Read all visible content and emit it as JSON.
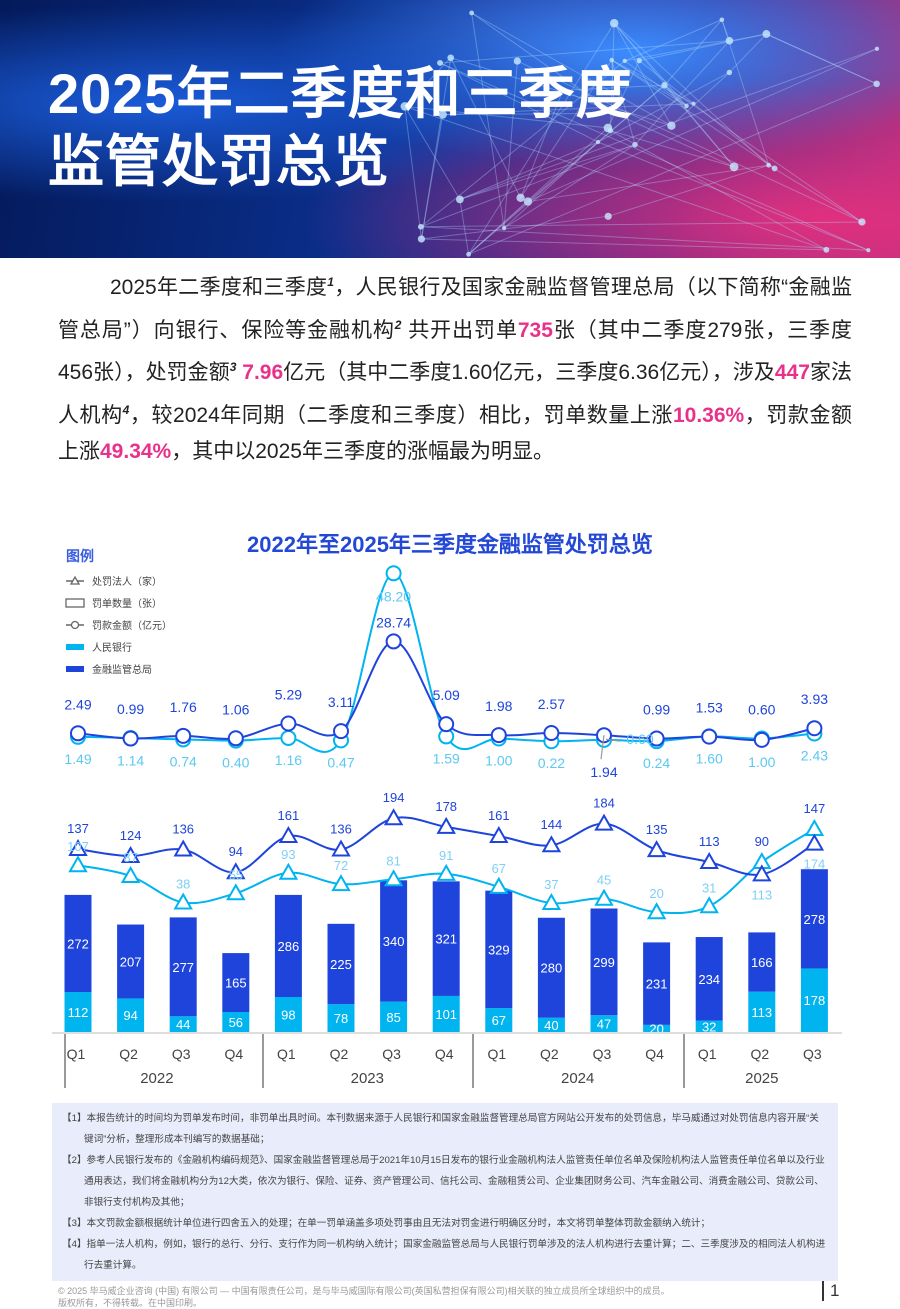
{
  "header": {
    "title_line1": "2025年二季度和三季度",
    "title_line2": "监管处罚总览"
  },
  "paragraph": [
    {
      "t": "2025年二季度和三季度"
    },
    {
      "sup": "1"
    },
    {
      "t": "，人民银行及国家金融监督管理总局（以下简称“金融监管总局”）向银行、保险等金融机构"
    },
    {
      "sup": "2"
    },
    {
      "t": " 共开出罚单"
    },
    {
      "hl": "735"
    },
    {
      "t": "张（其中二季度279张，三季度456张），处罚金额"
    },
    {
      "sup": "3"
    },
    {
      "t": " "
    },
    {
      "hl": "7.96"
    },
    {
      "t": "亿元（其中二季度1.60亿元，三季度6.36亿元），涉及"
    },
    {
      "hl": "447"
    },
    {
      "t": "家法人机构"
    },
    {
      "sup": "4"
    },
    {
      "t": "，较2024年同期（二季度和三季度）相比，罚单数量上涨"
    },
    {
      "hl": "10.36%"
    },
    {
      "t": "，罚款金额上涨"
    },
    {
      "hl": "49.34%"
    },
    {
      "t": "，其中以2025年三季度的涨幅最为明显。"
    }
  ],
  "colors": {
    "pboc": "#00b4f0",
    "nfra": "#1e44dc",
    "highlight": "#e8318a",
    "title": "#2348d6"
  },
  "chart_data": {
    "type": "bar+line",
    "title": "2022年至2025年三季度金融监管处罚总览",
    "legend_title": "图例",
    "legend": [
      {
        "label": "处罚法人（家）",
        "marker": "triangle-line"
      },
      {
        "label": "罚单数量（张）",
        "marker": "bar-outline"
      },
      {
        "label": "罚款金额（亿元）",
        "marker": "circle-line"
      },
      {
        "label": "人民银行",
        "marker": "pboc-swatch"
      },
      {
        "label": "金融监管总局",
        "marker": "nfra-swatch"
      }
    ],
    "quarters": [
      "Q1",
      "Q2",
      "Q3",
      "Q4",
      "Q1",
      "Q2",
      "Q3",
      "Q4",
      "Q1",
      "Q2",
      "Q3",
      "Q4",
      "Q1",
      "Q2",
      "Q3"
    ],
    "years": [
      {
        "label": "2022",
        "span": 4
      },
      {
        "label": "2023",
        "span": 4
      },
      {
        "label": "2024",
        "span": 4
      },
      {
        "label": "2025",
        "span": 3
      }
    ],
    "penalty_count": {
      "pboc": [
        112,
        94,
        44,
        56,
        98,
        78,
        85,
        101,
        67,
        40,
        47,
        20,
        32,
        113,
        178
      ],
      "nfra": [
        272,
        207,
        277,
        165,
        286,
        225,
        340,
        321,
        329,
        280,
        299,
        231,
        234,
        166,
        278
      ]
    },
    "penalized_entities": {
      "pboc": [
        107,
        87,
        38,
        55,
        93,
        72,
        81,
        91,
        67,
        37,
        45,
        20,
        31,
        113,
        174
      ],
      "nfra": [
        137,
        124,
        136,
        94,
        161,
        136,
        194,
        178,
        161,
        144,
        184,
        135,
        113,
        90,
        147
      ]
    },
    "fine_amount": {
      "pboc": [
        "1.49",
        "1.14",
        "0.74",
        "0.40",
        "1.16",
        "0.47",
        "48.20",
        "1.59",
        "1.00",
        "0.22",
        "0.60",
        "0.24",
        "1.60",
        "1.00",
        "2.43"
      ],
      "nfra": [
        "2.49",
        "0.99",
        "1.76",
        "1.06",
        "5.29",
        "3.11",
        "28.74",
        "5.09",
        "1.98",
        "2.57",
        "1.94",
        "0.99",
        "1.53",
        "0.60",
        "3.93"
      ]
    }
  },
  "notes": [
    "【1】本报告统计的时间均为罚单发布时间，非罚单出具时间。本刊数据来源于人民银行和国家金融监督管理总局官方网站公开发布的处罚信息，毕马威通过对处罚信息内容开展“关键词”分析，整理形成本刊编写的数据基础；",
    "【2】参考人民银行发布的《金融机构编码规范》、国家金融监督管理总局于2021年10月15日发布的银行业金融机构法人监管责任单位名单及保险机构法人监管责任单位名单以及行业通用表达，我们将金融机构分为12大类，依次为银行、保险、证券、资产管理公司、信托公司、金融租赁公司、企业集团财务公司、汽车金融公司、消费金融公司、贷款公司、非银行支付机构及其他；",
    "【3】本文罚款金额根据统计单位进行四舍五入的处理；在单一罚单涵盖多项处罚事由且无法对罚金进行明确区分时，本文将罚单整体罚款金额纳入统计；",
    "【4】指单一法人机构，例如，银行的总行、分行、支行作为同一机构纳入统计；国家金融监管总局与人民银行罚单涉及的法人机构进行去重计算；二、三季度涉及的相同法人机构进行去重计算。"
  ],
  "footer": {
    "line1": "© 2025 毕马威企业咨询 (中国) 有限公司 — 中国有限责任公司，是与毕马威国际有限公司(英国私营担保有限公司)相关联的独立成员所全球组织中的成员。",
    "line2": "版权所有，不得转载。在中国印刷。",
    "page_number": "1"
  }
}
